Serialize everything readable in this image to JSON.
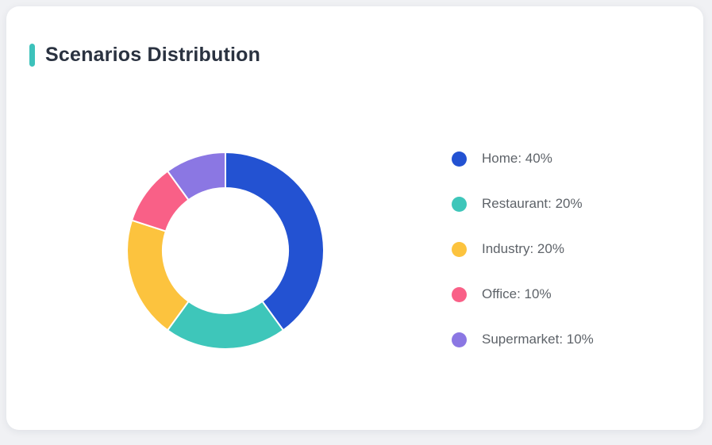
{
  "page": {
    "background_color": "#f0f1f4"
  },
  "card": {
    "title": "Scenarios Distribution",
    "accent_color": "#3dc2bb",
    "background_color": "#ffffff",
    "title_color": "#2a3240"
  },
  "chart_data": {
    "type": "pie",
    "subtype": "donut",
    "title": "Scenarios Distribution",
    "categories": [
      "Home",
      "Restaurant",
      "Industry",
      "Office",
      "Supermarket"
    ],
    "values": [
      40,
      20,
      20,
      10,
      10
    ],
    "unit": "%",
    "colors": [
      "#2352d2",
      "#3ec6ba",
      "#fcc33e",
      "#f96087",
      "#8b77e3"
    ],
    "legend_position": "right",
    "legend_label_format": "{name}: {value}%",
    "legend_text_color": "#5e6369",
    "start_angle_deg": 0,
    "direction": "clockwise",
    "inner_radius_ratio": 0.637,
    "segment_border_color": "#ffffff",
    "segment_border_width": 2
  }
}
